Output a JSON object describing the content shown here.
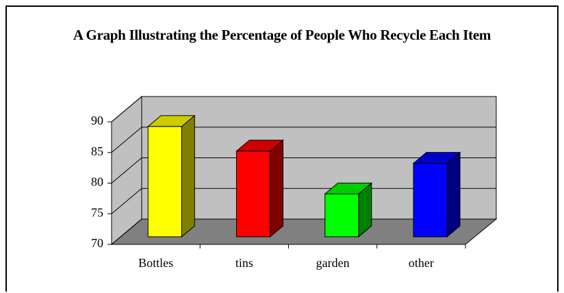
{
  "chart_data": {
    "type": "bar3d",
    "title": "A Graph Illustrating the Percentage of People Who Recycle Each Item",
    "categories": [
      "Bottles",
      "tins",
      "garden",
      "other"
    ],
    "values": [
      88,
      84,
      77,
      82
    ],
    "colors": [
      "#ffff00",
      "#ff0000",
      "#00ff00",
      "#0000ff"
    ],
    "ylim": [
      70,
      90
    ],
    "yticks": [
      70,
      75,
      80,
      85,
      90
    ],
    "grid": true
  }
}
